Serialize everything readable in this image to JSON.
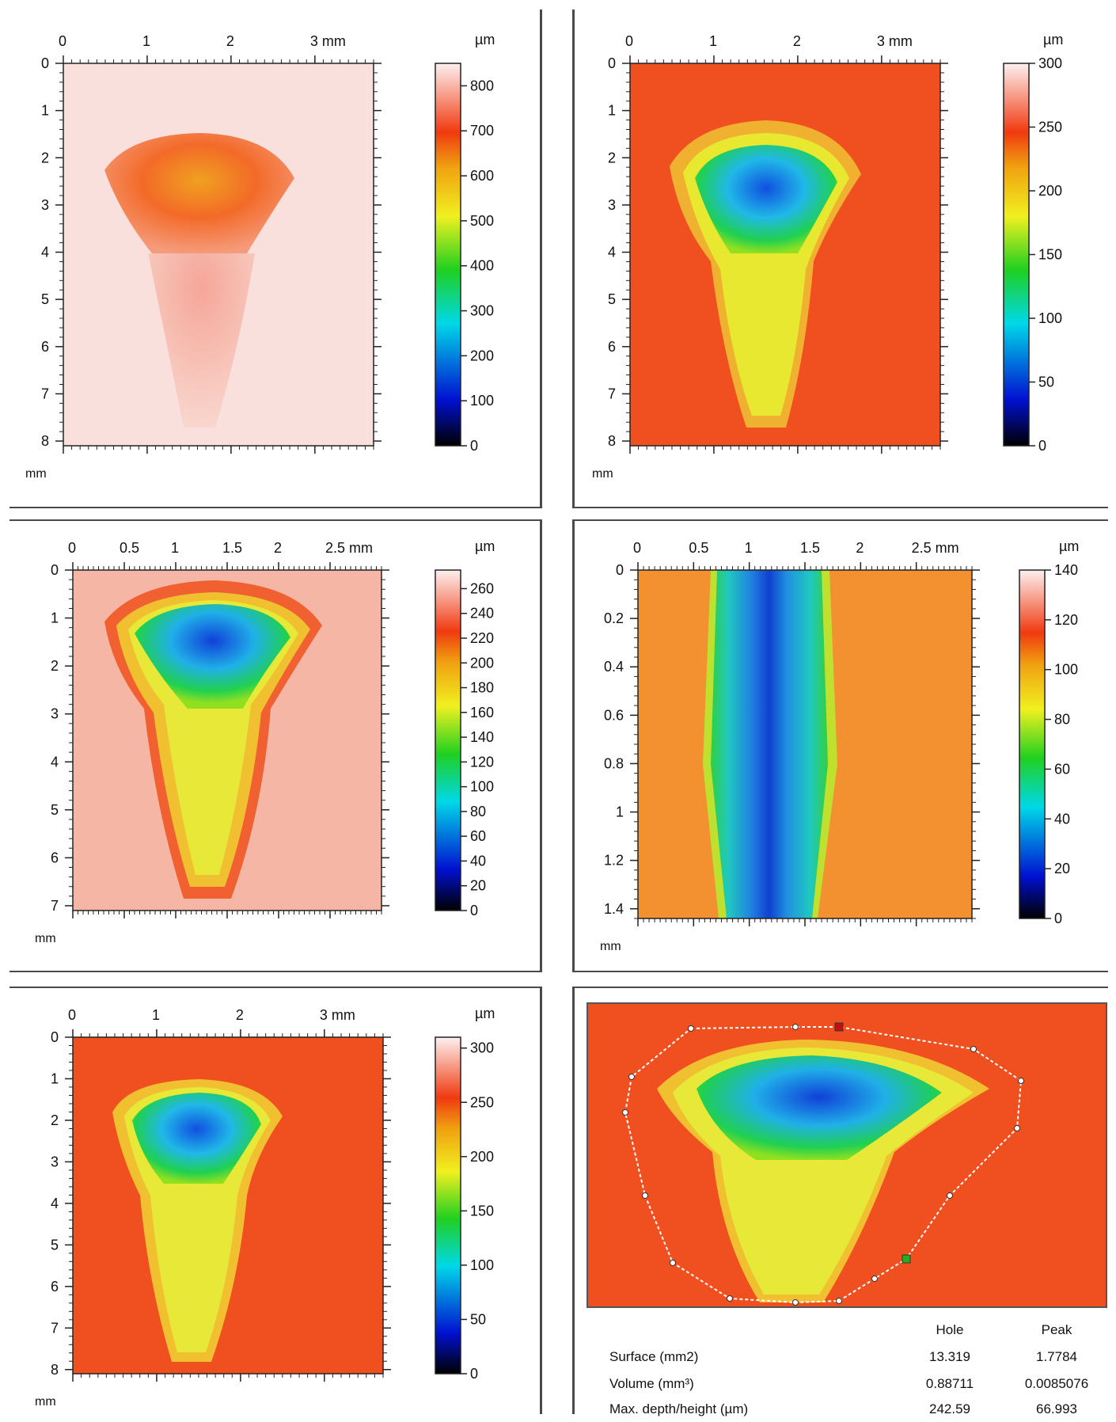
{
  "chart_data": [
    {
      "type": "heatmap",
      "xlabel": "mm",
      "ylabel": "mm",
      "colorbar_label": "µm",
      "x_ticks": [
        "0",
        "1",
        "2",
        "3 mm"
      ],
      "x_tick_values": [
        0,
        1,
        2,
        3
      ],
      "y_ticks": [
        "0",
        "1",
        "2",
        "3",
        "4",
        "5",
        "6",
        "7",
        "8"
      ],
      "y_tick_values": [
        0,
        1,
        2,
        3,
        4,
        5,
        6,
        7,
        8
      ],
      "xlim": [
        0,
        3.7
      ],
      "ylim": [
        0,
        8.1
      ],
      "colorbar_ticks": [
        "0",
        "100",
        "200",
        "300",
        "400",
        "500",
        "600",
        "700",
        "800"
      ],
      "colorbar_tick_values": [
        0,
        100,
        200,
        300,
        400,
        500,
        600,
        700,
        800
      ],
      "colorbar_range": [
        0,
        850
      ]
    },
    {
      "type": "heatmap",
      "xlabel": "mm",
      "ylabel": "mm",
      "colorbar_label": "µm",
      "x_ticks": [
        "0",
        "1",
        "2",
        "3 mm"
      ],
      "x_tick_values": [
        0,
        1,
        2,
        3
      ],
      "y_ticks": [
        "0",
        "1",
        "2",
        "3",
        "4",
        "5",
        "6",
        "7",
        "8"
      ],
      "y_tick_values": [
        0,
        1,
        2,
        3,
        4,
        5,
        6,
        7,
        8
      ],
      "xlim": [
        0,
        3.7
      ],
      "ylim": [
        0,
        8.1
      ],
      "colorbar_ticks": [
        "0",
        "50",
        "100",
        "150",
        "200",
        "250",
        "300"
      ],
      "colorbar_tick_values": [
        0,
        50,
        100,
        150,
        200,
        250,
        300
      ],
      "colorbar_range": [
        0,
        300
      ]
    },
    {
      "type": "heatmap",
      "xlabel": "mm",
      "ylabel": "mm",
      "colorbar_label": "µm",
      "x_ticks": [
        "0",
        "0.5",
        "1",
        "1.5",
        "2",
        "2.5 mm"
      ],
      "x_tick_values": [
        0,
        0.5,
        1,
        1.5,
        2,
        2.5
      ],
      "y_ticks": [
        "0",
        "1",
        "2",
        "3",
        "4",
        "5",
        "6",
        "7"
      ],
      "y_tick_values": [
        0,
        1,
        2,
        3,
        4,
        5,
        6,
        7
      ],
      "xlim": [
        0,
        3.0
      ],
      "ylim": [
        0,
        7.1
      ],
      "colorbar_ticks": [
        "0",
        "20",
        "40",
        "60",
        "80",
        "100",
        "120",
        "140",
        "160",
        "180",
        "200",
        "220",
        "240",
        "260"
      ],
      "colorbar_tick_values": [
        0,
        20,
        40,
        60,
        80,
        100,
        120,
        140,
        160,
        180,
        200,
        220,
        240,
        260
      ],
      "colorbar_range": [
        0,
        275
      ]
    },
    {
      "type": "heatmap",
      "xlabel": "mm",
      "ylabel": "mm",
      "colorbar_label": "µm",
      "x_ticks": [
        "0",
        "0.5",
        "1",
        "1.5",
        "2",
        "2.5 mm"
      ],
      "x_tick_values": [
        0,
        0.5,
        1,
        1.5,
        2,
        2.5
      ],
      "y_ticks": [
        "0",
        "0.2",
        "0.4",
        "0.6",
        "0.8",
        "1",
        "1.2",
        "1.4"
      ],
      "y_tick_values": [
        0,
        0.2,
        0.4,
        0.6,
        0.8,
        1,
        1.2,
        1.4
      ],
      "xlim": [
        0,
        3.0
      ],
      "ylim": [
        0,
        1.44
      ],
      "colorbar_ticks": [
        "0",
        "20",
        "40",
        "60",
        "80",
        "100",
        "120",
        "140"
      ],
      "colorbar_tick_values": [
        0,
        20,
        40,
        60,
        80,
        100,
        120,
        140
      ],
      "colorbar_range": [
        0,
        140
      ]
    },
    {
      "type": "heatmap",
      "xlabel": "mm",
      "ylabel": "mm",
      "colorbar_label": "µm",
      "x_ticks": [
        "0",
        "1",
        "2",
        "3 mm"
      ],
      "x_tick_values": [
        0,
        1,
        2,
        3
      ],
      "y_ticks": [
        "0",
        "1",
        "2",
        "3",
        "4",
        "5",
        "6",
        "7",
        "8"
      ],
      "y_tick_values": [
        0,
        1,
        2,
        3,
        4,
        5,
        6,
        7,
        8
      ],
      "xlim": [
        0,
        3.7
      ],
      "ylim": [
        0,
        8.1
      ],
      "colorbar_ticks": [
        "0",
        "50",
        "100",
        "150",
        "200",
        "250",
        "300"
      ],
      "colorbar_tick_values": [
        0,
        50,
        100,
        150,
        200,
        250,
        300
      ],
      "colorbar_range": [
        0,
        310
      ]
    }
  ],
  "measurement": {
    "headers": [
      "Hole",
      "Peak"
    ],
    "rows": [
      {
        "label": "Surface (mm2)",
        "hole": "13.319",
        "peak": "1.7784"
      },
      {
        "label": "Volume (mm³)",
        "hole": "0.88711",
        "peak": "0.0085076"
      },
      {
        "label": "Max. depth/height (µm)",
        "hole": "242.59",
        "peak": "66.993"
      }
    ]
  }
}
